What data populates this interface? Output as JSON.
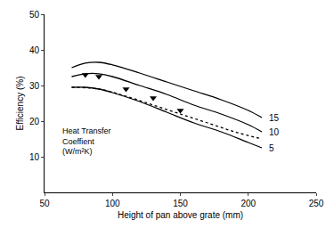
{
  "chart_data": {
    "type": "line",
    "x_label": "Height of pan above grate (mm)",
    "y_label": "Efficiency (%)",
    "annotation": [
      "Heat Transfer",
      "Coeffient",
      "(W/m²K)"
    ],
    "xlim": [
      50,
      250
    ],
    "xticks": [
      50,
      100,
      150,
      200,
      250
    ],
    "ylim": [
      0,
      50
    ],
    "yticks": [
      10,
      20,
      30,
      40,
      50
    ],
    "grid": false,
    "series": [
      {
        "name": "15",
        "type": "line",
        "color": "#000000",
        "line_style": "solid",
        "x": [
          70,
          80,
          90,
          100,
          120,
          140,
          160,
          180,
          200,
          210
        ],
        "values": [
          35,
          36.3,
          36.5,
          35.8,
          33.5,
          31,
          28.5,
          26,
          23,
          21
        ]
      },
      {
        "name": "10",
        "type": "line",
        "color": "#000000",
        "line_style": "solid",
        "x": [
          70,
          80,
          90,
          100,
          120,
          140,
          160,
          180,
          200,
          210
        ],
        "values": [
          32.5,
          33.3,
          33.3,
          32.5,
          30,
          27.5,
          24.5,
          22,
          19,
          17
        ]
      },
      {
        "name": "5",
        "type": "line",
        "color": "#000000",
        "line_style": "solid",
        "x": [
          70,
          80,
          90,
          100,
          120,
          140,
          160,
          180,
          200,
          210
        ],
        "values": [
          29.5,
          29.5,
          29,
          28,
          25.5,
          22.5,
          19.5,
          17,
          14,
          12.5
        ]
      },
      {
        "type": "line",
        "color": "#000000",
        "line_style": "dotted",
        "x": [
          70,
          90,
          110,
          130,
          150,
          170,
          190,
          210
        ],
        "values": [
          29.5,
          29,
          27,
          24.5,
          22,
          19.5,
          17,
          15
        ]
      },
      {
        "type": "scatter",
        "color": "#000000",
        "marker": "triangle-down",
        "x": [
          80,
          90,
          110,
          130,
          150
        ],
        "values": [
          33,
          32.5,
          29,
          26.5,
          23
        ]
      }
    ]
  }
}
